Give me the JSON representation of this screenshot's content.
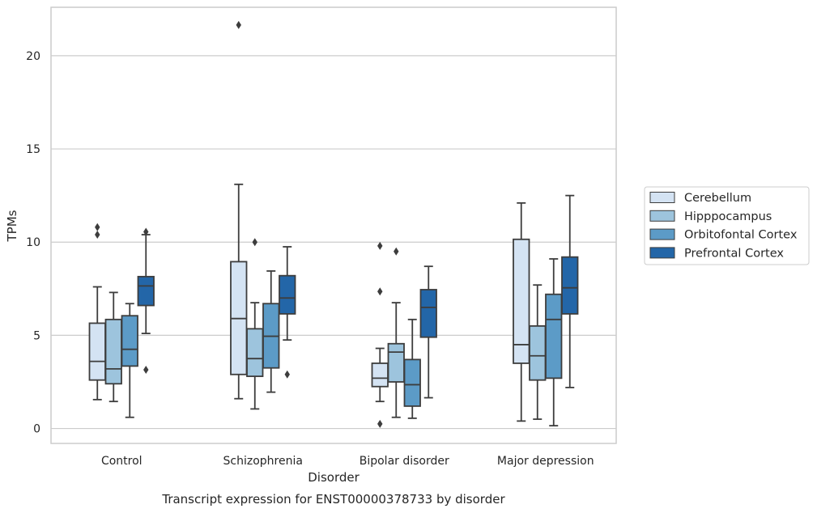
{
  "chart_data": {
    "type": "box",
    "title": "",
    "caption": "Transcript expression for ENST00000378733 by disorder",
    "xlabel": "Disorder",
    "ylabel": "TPMs",
    "ylim": [
      -0.8,
      22.6
    ],
    "yticks": [
      0,
      5,
      10,
      15,
      20
    ],
    "grid": "horizontal",
    "legend_position": "right",
    "categories": [
      "Control",
      "Schizophrenia",
      "Bipolar disorder",
      "Major depression"
    ],
    "series": [
      {
        "name": "Cerebellum",
        "color": "#d4e3f3",
        "boxes": [
          {
            "whislo": 1.55,
            "q1": 2.6,
            "median": 3.6,
            "q3": 5.65,
            "whishi": 7.6,
            "fliers": [
              10.4,
              10.8
            ]
          },
          {
            "whislo": 1.6,
            "q1": 2.9,
            "median": 5.9,
            "q3": 8.95,
            "whishi": 13.1,
            "fliers": [
              21.65
            ]
          },
          {
            "whislo": 1.45,
            "q1": 2.25,
            "median": 2.7,
            "q3": 3.5,
            "whishi": 4.3,
            "fliers": [
              0.25,
              7.35,
              9.8
            ]
          },
          {
            "whislo": 0.4,
            "q1": 3.5,
            "median": 4.5,
            "q3": 10.15,
            "whishi": 12.1,
            "fliers": []
          }
        ]
      },
      {
        "name": "Hipppocampus",
        "color": "#9dc4dd",
        "boxes": [
          {
            "whislo": 1.45,
            "q1": 2.4,
            "median": 3.2,
            "q3": 5.85,
            "whishi": 7.3,
            "fliers": []
          },
          {
            "whislo": 1.05,
            "q1": 2.8,
            "median": 3.75,
            "q3": 5.35,
            "whishi": 6.75,
            "fliers": [
              10.0
            ]
          },
          {
            "whislo": 0.6,
            "q1": 2.5,
            "median": 4.1,
            "q3": 4.55,
            "whishi": 6.75,
            "fliers": [
              9.5
            ]
          },
          {
            "whislo": 0.5,
            "q1": 2.6,
            "median": 3.9,
            "q3": 5.5,
            "whishi": 7.7,
            "fliers": []
          }
        ]
      },
      {
        "name": "Orbitofontal Cortex",
        "color": "#5c9bc7",
        "boxes": [
          {
            "whislo": 0.6,
            "q1": 3.35,
            "median": 4.25,
            "q3": 6.05,
            "whishi": 6.7,
            "fliers": []
          },
          {
            "whislo": 1.95,
            "q1": 3.25,
            "median": 4.95,
            "q3": 6.7,
            "whishi": 8.45,
            "fliers": []
          },
          {
            "whislo": 0.55,
            "q1": 1.2,
            "median": 2.35,
            "q3": 3.7,
            "whishi": 5.85,
            "fliers": []
          },
          {
            "whislo": 0.15,
            "q1": 2.7,
            "median": 5.85,
            "q3": 7.2,
            "whishi": 9.1,
            "fliers": []
          }
        ]
      },
      {
        "name": "Prefrontal Cortex",
        "color": "#2366a8",
        "boxes": [
          {
            "whislo": 5.1,
            "q1": 6.6,
            "median": 7.65,
            "q3": 8.15,
            "whishi": 10.4,
            "fliers": [
              3.15,
              10.55
            ]
          },
          {
            "whislo": 4.75,
            "q1": 6.15,
            "median": 7.0,
            "q3": 8.2,
            "whishi": 9.75,
            "fliers": [
              2.9
            ]
          },
          {
            "whislo": 1.65,
            "q1": 4.9,
            "median": 6.5,
            "q3": 7.45,
            "whishi": 8.7,
            "fliers": []
          },
          {
            "whislo": 2.2,
            "q1": 6.15,
            "median": 7.55,
            "q3": 9.2,
            "whishi": 12.5,
            "fliers": []
          }
        ]
      }
    ]
  }
}
